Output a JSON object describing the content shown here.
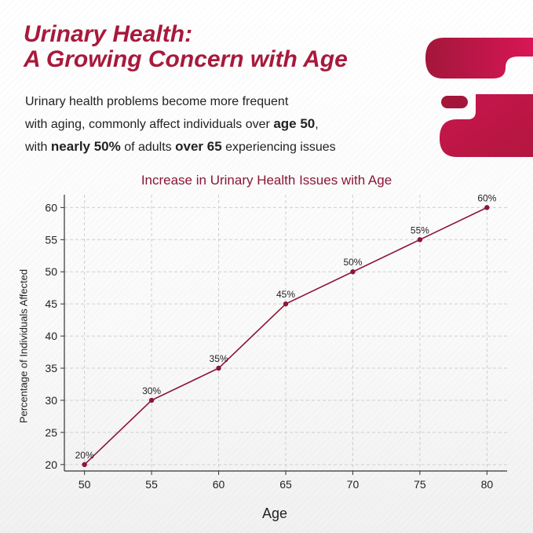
{
  "header": {
    "title_line1": "Urinary Health:",
    "title_line2": "A Growing Concern with Age"
  },
  "intro": {
    "line1": "Urinary health problems become more frequent",
    "line2_pre": "with aging, commonly affect individuals over ",
    "line2_bold": "age 50",
    "line2_post": ",",
    "line3_pre": "with ",
    "line3_bold1": "nearly 50%",
    "line3_mid": " of adults ",
    "line3_bold2": "over 65",
    "line3_post": " experiencing issues"
  },
  "colors": {
    "accent": "#a8193c",
    "line": "#8a1736",
    "deco_light": "#d81656",
    "deco_dark": "#a3173a"
  },
  "chart_data": {
    "type": "line",
    "title": "Increase in Urinary Health Issues with Age",
    "xlabel": "Age",
    "ylabel": "Percentage of Individuals Affected",
    "x": [
      50,
      55,
      60,
      65,
      70,
      75,
      80
    ],
    "y": [
      20,
      30,
      35,
      45,
      50,
      55,
      60
    ],
    "data_labels": [
      "20%",
      "30%",
      "35%",
      "45%",
      "50%",
      "55%",
      "60%"
    ],
    "xticks": [
      50,
      55,
      60,
      65,
      70,
      75,
      80
    ],
    "yticks": [
      20,
      25,
      30,
      35,
      40,
      45,
      50,
      55,
      60
    ],
    "xlim": [
      48.5,
      81.5
    ],
    "ylim": [
      19,
      62
    ],
    "grid": true,
    "legend": false
  }
}
